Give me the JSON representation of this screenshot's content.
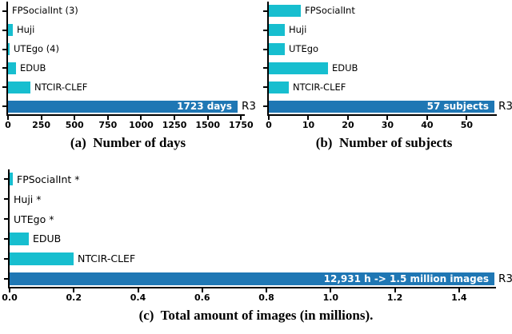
{
  "figure": {
    "background": "#ffffff",
    "colors": {
      "dataset_bar": "#17becf",
      "r3_bar": "#1f77b4",
      "axis": "#000000",
      "inner_label_text": "#ffffff",
      "text": "#000000"
    }
  },
  "chart_data": [
    {
      "id": "a",
      "type": "bar",
      "orientation": "horizontal",
      "caption": "(a)  Number of days",
      "title": "",
      "xlabel": "",
      "ylabel": "",
      "xlim": [
        0,
        1790
      ],
      "grid": false,
      "xtick_values": [
        0,
        250,
        500,
        750,
        1000,
        1250,
        1500,
        1750
      ],
      "xtick_labels": [
        "0",
        "250",
        "500",
        "750",
        "1000",
        "1250",
        "1500",
        "1750"
      ],
      "rows": [
        {
          "label": "FPSocialInt (3)",
          "value": 3,
          "highlight": false
        },
        {
          "label": "Huji",
          "value": 35,
          "highlight": false
        },
        {
          "label": "UTEgo (4)",
          "value": 4,
          "highlight": false
        },
        {
          "label": "EDUB",
          "value": 60,
          "highlight": false
        },
        {
          "label": "NTCIR-CLEF",
          "value": 170,
          "highlight": false
        },
        {
          "label": "R3",
          "value": 1723,
          "highlight": true,
          "inner_label": "1723 days"
        }
      ]
    },
    {
      "id": "b",
      "type": "bar",
      "orientation": "horizontal",
      "caption": "(b)  Number of subjects",
      "title": "",
      "xlabel": "",
      "ylabel": "",
      "xlim": [
        0,
        58
      ],
      "grid": false,
      "xtick_values": [
        0,
        10,
        20,
        30,
        40,
        50
      ],
      "xtick_labels": [
        "0",
        "10",
        "20",
        "30",
        "40",
        "50"
      ],
      "rows": [
        {
          "label": "FPSocialInt",
          "value": 8,
          "highlight": false
        },
        {
          "label": "Huji",
          "value": 4,
          "highlight": false
        },
        {
          "label": "UTEgo",
          "value": 4,
          "highlight": false
        },
        {
          "label": "EDUB",
          "value": 15,
          "highlight": false
        },
        {
          "label": "NTCIR-CLEF",
          "value": 5,
          "highlight": false
        },
        {
          "label": "R3",
          "value": 57,
          "highlight": true,
          "inner_label": "57 subjects"
        }
      ]
    },
    {
      "id": "c",
      "type": "bar",
      "orientation": "horizontal",
      "caption": "(c)  Total amount of images (in millions).",
      "title": "",
      "xlabel": "",
      "ylabel": "",
      "xlim": [
        0,
        1.52
      ],
      "grid": false,
      "xtick_values": [
        0.0,
        0.2,
        0.4,
        0.6,
        0.8,
        1.0,
        1.2,
        1.4
      ],
      "xtick_labels": [
        "0.0",
        "0.2",
        "0.4",
        "0.6",
        "0.8",
        "1.0",
        "1.2",
        "1.4"
      ],
      "rows": [
        {
          "label": "FPSocialInt *",
          "value": 0.01,
          "highlight": false
        },
        {
          "label": "Huji *",
          "value": 0,
          "highlight": false
        },
        {
          "label": "UTEgo *",
          "value": 0,
          "highlight": false
        },
        {
          "label": "EDUB",
          "value": 0.06,
          "highlight": false
        },
        {
          "label": "NTCIR-CLEF",
          "value": 0.2,
          "highlight": false
        },
        {
          "label": "R3",
          "value": 1.51,
          "highlight": true,
          "inner_label": "12,931 h -> 1.5 million images"
        }
      ]
    }
  ]
}
